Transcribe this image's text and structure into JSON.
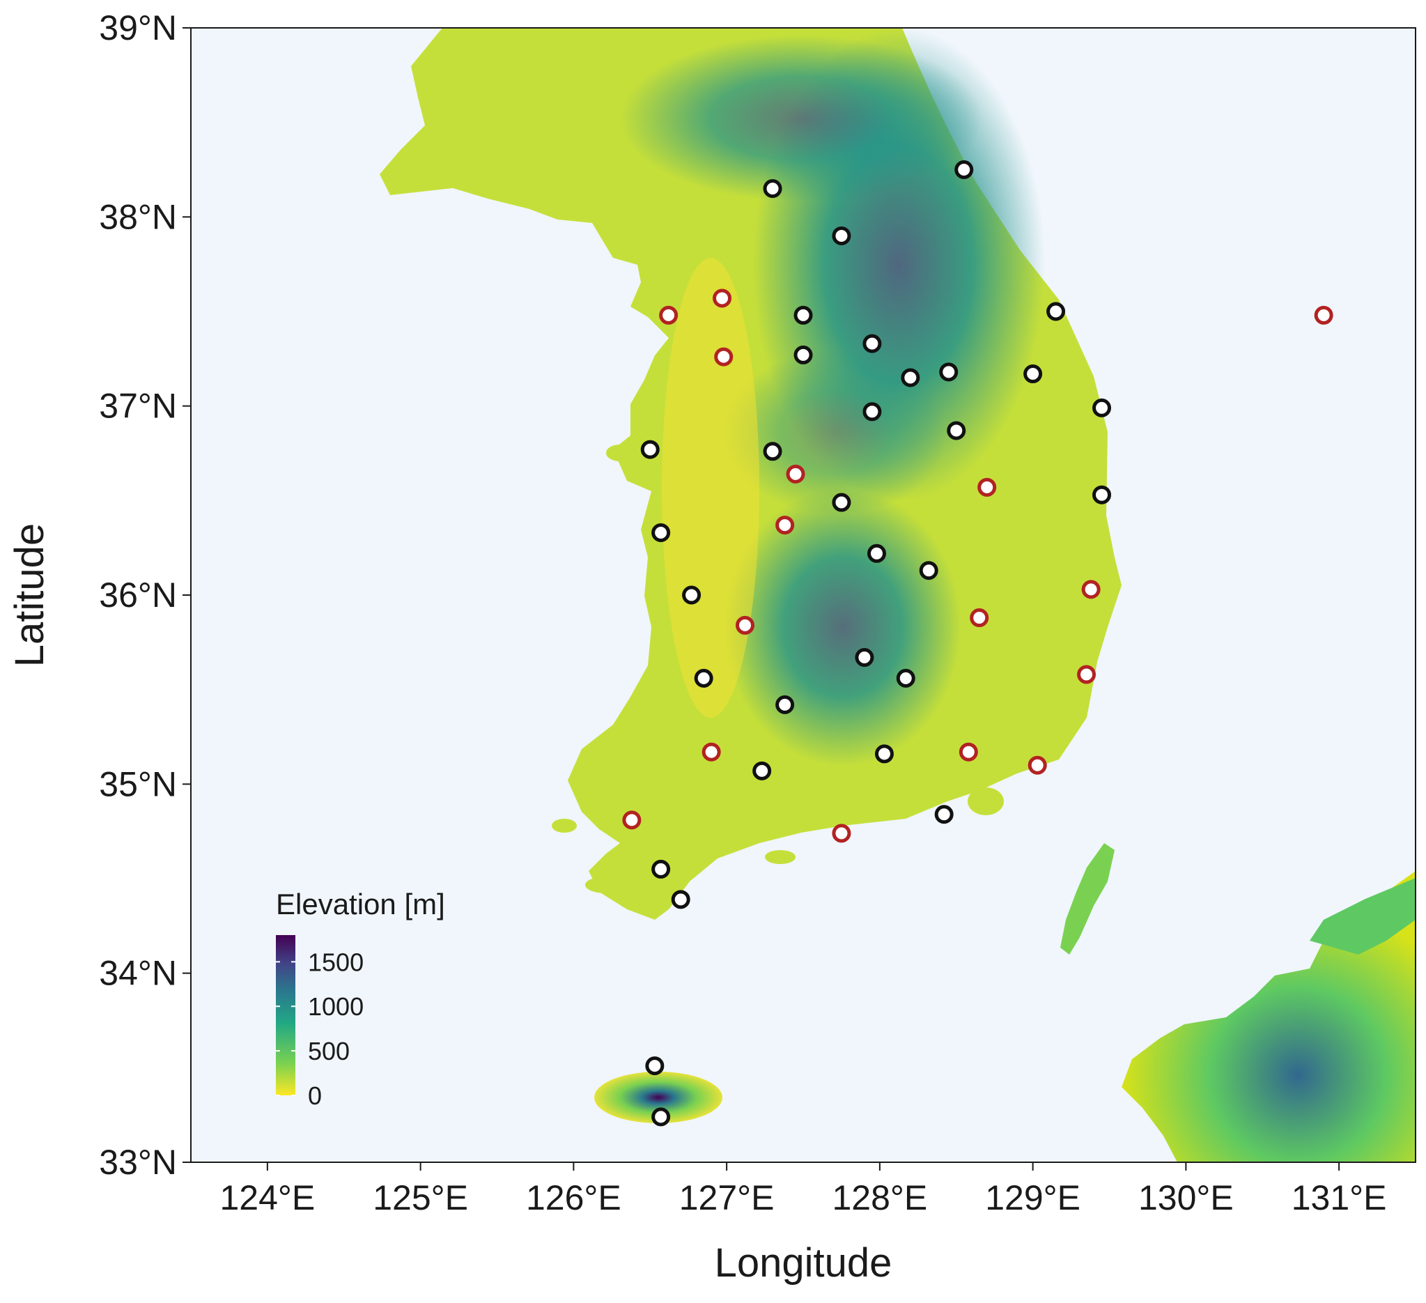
{
  "chart_data": {
    "type": "scatter",
    "title": "",
    "xlabel": "Longitude",
    "ylabel": "Latitude",
    "xlim": [
      123.5,
      131.5
    ],
    "ylim": [
      33,
      39
    ],
    "x_ticks": [
      124,
      125,
      126,
      127,
      128,
      129,
      130,
      131
    ],
    "x_tick_labels": [
      "124°E",
      "125°E",
      "126°E",
      "127°E",
      "128°E",
      "129°E",
      "130°E",
      "131°E"
    ],
    "y_ticks": [
      33,
      34,
      35,
      36,
      37,
      38,
      39
    ],
    "y_tick_labels": [
      "33°N",
      "34°N",
      "35°N",
      "36°N",
      "37°N",
      "38°N",
      "39°N"
    ],
    "grid": false,
    "background": "elevation raster of the Korean Peninsula (sea shown pale blue)",
    "legend": {
      "title": "Elevation [m]",
      "placement": "bottom-left inside plot",
      "ticks": [
        0,
        500,
        1000,
        1500
      ],
      "tick_labels": [
        "0",
        "500",
        "1000",
        "1500"
      ],
      "range": [
        0,
        1800
      ],
      "colors": [
        "#fde725",
        "#7ad151",
        "#22a884",
        "#2a788e",
        "#414487",
        "#440154"
      ]
    },
    "colors": {
      "black_station_edge": "#111111",
      "red_station_edge": "#b22222",
      "station_fill": "#ffffff",
      "sea": "#f0f6fb",
      "land_low": "#fde725",
      "land_high": "#440154"
    },
    "series": [
      {
        "marker": "black",
        "points": [
          [
            127.3,
            38.15
          ],
          [
            128.55,
            38.25
          ],
          [
            127.75,
            37.9
          ],
          [
            127.5,
            37.48
          ],
          [
            129.15,
            37.5
          ],
          [
            127.95,
            37.33
          ],
          [
            127.5,
            37.27
          ],
          [
            128.2,
            37.15
          ],
          [
            128.45,
            37.18
          ],
          [
            129.0,
            37.17
          ],
          [
            127.95,
            36.97
          ],
          [
            129.45,
            36.99
          ],
          [
            128.5,
            36.87
          ],
          [
            126.5,
            36.77
          ],
          [
            127.3,
            36.76
          ],
          [
            127.75,
            36.49
          ],
          [
            129.45,
            36.53
          ],
          [
            126.57,
            36.33
          ],
          [
            127.98,
            36.22
          ],
          [
            128.32,
            36.13
          ],
          [
            126.77,
            36.0
          ],
          [
            127.9,
            35.67
          ],
          [
            126.85,
            35.56
          ],
          [
            128.17,
            35.56
          ],
          [
            127.38,
            35.42
          ],
          [
            128.03,
            35.16
          ],
          [
            127.23,
            35.07
          ],
          [
            128.42,
            34.84
          ],
          [
            126.57,
            34.55
          ],
          [
            126.7,
            34.39
          ],
          [
            126.53,
            33.51
          ],
          [
            126.57,
            33.24
          ]
        ]
      },
      {
        "marker": "red",
        "points": [
          [
            126.62,
            37.48
          ],
          [
            126.97,
            37.57
          ],
          [
            126.98,
            37.26
          ],
          [
            130.9,
            37.48
          ],
          [
            127.45,
            36.64
          ],
          [
            128.7,
            36.57
          ],
          [
            127.38,
            36.37
          ],
          [
            129.38,
            36.03
          ],
          [
            127.12,
            35.84
          ],
          [
            128.65,
            35.88
          ],
          [
            129.35,
            35.58
          ],
          [
            126.9,
            35.17
          ],
          [
            128.58,
            35.17
          ],
          [
            129.03,
            35.1
          ],
          [
            126.38,
            34.81
          ],
          [
            127.75,
            34.74
          ]
        ]
      }
    ]
  }
}
